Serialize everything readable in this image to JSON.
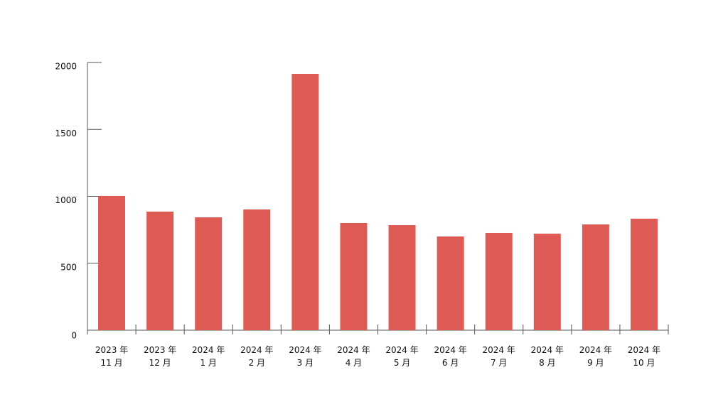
{
  "chart_data": {
    "type": "bar",
    "categories": [
      "2023 年\n11 月",
      "2023 年\n12 月",
      "2024 年\n1 月",
      "2024 年\n2 月",
      "2024 年\n3 月",
      "2024 年\n4 月",
      "2024 年\n5 月",
      "2024 年\n6 月",
      "2024 年\n7 月",
      "2024 年\n8 月",
      "2024 年\n9 月",
      "2024 年\n10 月"
    ],
    "values": [
      1003,
      886,
      843,
      902,
      1915,
      801,
      785,
      700,
      727,
      721,
      790,
      833
    ],
    "color": "#dd5a55",
    "ylim": [
      0,
      2000
    ],
    "yticks": [
      0,
      500,
      1000,
      1500,
      2000
    ],
    "grid": false
  }
}
